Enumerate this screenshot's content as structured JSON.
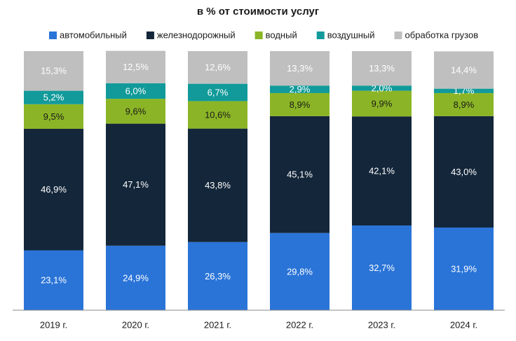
{
  "chart_data": {
    "type": "stacked_bar",
    "title": "в % от стоимости услуг",
    "categories": [
      "2019 г.",
      "2020 г.",
      "2021 г.",
      "2022 г.",
      "2023 г.",
      "2024 г."
    ],
    "series": [
      {
        "name": "автомобильный",
        "color": "#2a74d8",
        "label_color": "#ffffff",
        "values": [
          23.1,
          24.9,
          26.3,
          29.8,
          32.7,
          31.9
        ],
        "value_labels": [
          "23,1%",
          "24,9%",
          "26,3%",
          "29,8%",
          "32,7%",
          "31,9%"
        ]
      },
      {
        "name": "железнодорожный",
        "color": "#14263a",
        "label_color": "#ffffff",
        "values": [
          46.9,
          47.1,
          43.8,
          45.1,
          42.1,
          43.0
        ],
        "value_labels": [
          "46,9%",
          "47,1%",
          "43,8%",
          "45,1%",
          "42,1%",
          "43,0%"
        ]
      },
      {
        "name": "водный",
        "color": "#8bb526",
        "label_color": "#1a1a1a",
        "values": [
          9.5,
          9.6,
          10.6,
          8.9,
          9.9,
          8.9
        ],
        "value_labels": [
          "9,5%",
          "9,6%",
          "10,6%",
          "8,9%",
          "9,9%",
          "8,9%"
        ]
      },
      {
        "name": "воздушный",
        "color": "#129a9a",
        "label_color": "#ffffff",
        "values": [
          5.2,
          6.0,
          6.7,
          2.9,
          2.0,
          1.7
        ],
        "value_labels": [
          "5,2%",
          "6,0%",
          "6,7%",
          "2,9%",
          "2,0%",
          "1,7%"
        ]
      },
      {
        "name": "обработка грузов",
        "color": "#bfbfbf",
        "label_color": "#ffffff",
        "values": [
          15.3,
          12.5,
          12.6,
          13.3,
          13.3,
          14.4
        ],
        "value_labels": [
          "15,3%",
          "12,5%",
          "12,6%",
          "13,3%",
          "13,3%",
          "14,4%"
        ]
      }
    ],
    "ylim": [
      0,
      100
    ]
  }
}
